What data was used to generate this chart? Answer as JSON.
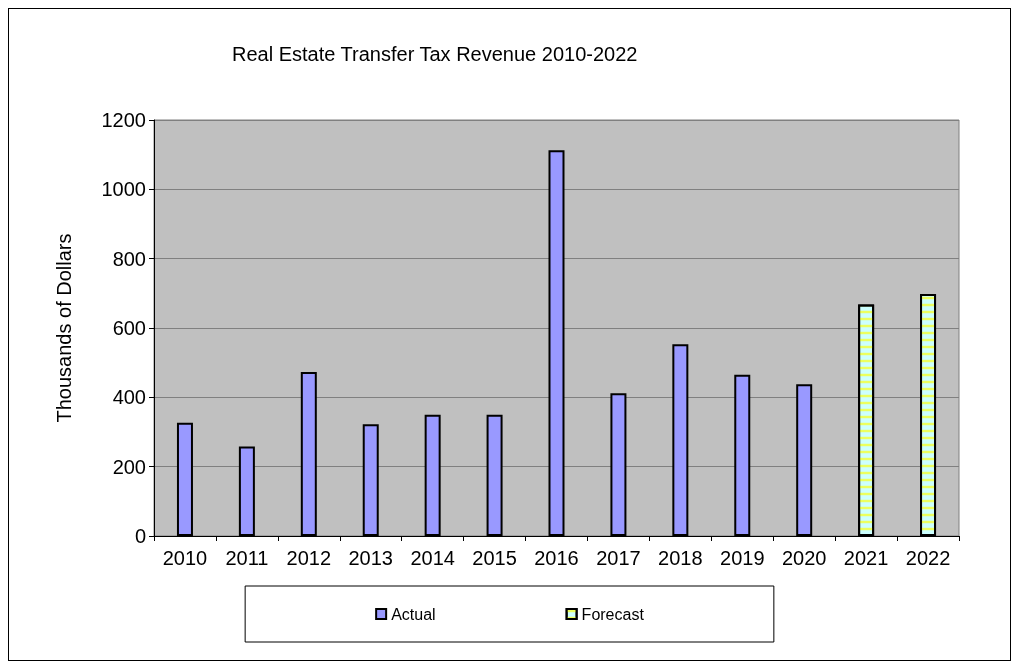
{
  "chart_data": {
    "type": "bar",
    "title": "Real Estate Transfer Tax Revenue 2010-2022",
    "ylabel": "Thousands of Dollars",
    "categories": [
      "2010",
      "2011",
      "2012",
      "2013",
      "2014",
      "2015",
      "2016",
      "2017",
      "2018",
      "2019",
      "2020",
      "2021",
      "2022"
    ],
    "series": [
      {
        "name": "Actual",
        "color": "#9999ff",
        "values": [
          327,
          258,
          473,
          322,
          350,
          350,
          1113,
          412,
          553,
          465,
          438,
          null,
          null
        ]
      },
      {
        "name": "Forecast",
        "color": "#ccffff",
        "values": [
          null,
          null,
          null,
          null,
          null,
          null,
          null,
          null,
          null,
          null,
          null,
          668,
          698
        ]
      }
    ],
    "ylim": [
      0,
      1200
    ],
    "yticks": [
      0,
      200,
      400,
      600,
      800,
      1000,
      1200
    ],
    "grid": "y",
    "legend": "bottom"
  }
}
